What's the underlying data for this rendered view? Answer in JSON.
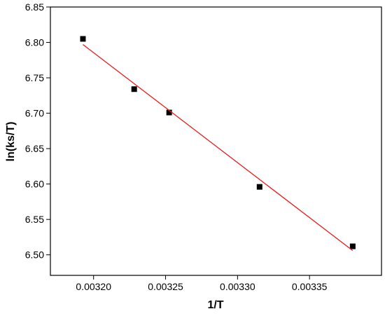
{
  "chart_data": {
    "type": "scatter",
    "x_label": "1/T",
    "y_label": "ln(ks/T)",
    "xlim": [
      0.00317,
      0.0034
    ],
    "ylim": [
      6.471,
      6.85
    ],
    "xticks": [
      {
        "value": 0.0032,
        "label": "0.00320"
      },
      {
        "value": 0.00325,
        "label": "0.00325"
      },
      {
        "value": 0.0033,
        "label": "0.00330"
      },
      {
        "value": 0.00335,
        "label": "0.00335"
      }
    ],
    "yticks": [
      {
        "value": 6.5,
        "label": "6.50"
      },
      {
        "value": 6.55,
        "label": "6.55"
      },
      {
        "value": 6.6,
        "label": "6.60"
      },
      {
        "value": 6.65,
        "label": "6.65"
      },
      {
        "value": 6.7,
        "label": "6.70"
      },
      {
        "value": 6.75,
        "label": "6.75"
      },
      {
        "value": 6.8,
        "label": "6.80"
      },
      {
        "value": 6.85,
        "label": "6.85"
      }
    ],
    "series": [
      {
        "style": "marker",
        "color": "#000000",
        "x": [
          0.0031926,
          0.0032282,
          0.0032525,
          0.0033153,
          0.00338
        ],
        "values": [
          6.805,
          6.734,
          6.701,
          6.596,
          6.512
        ]
      },
      {
        "style": "line",
        "color": "#e02020",
        "x": [
          0.0031926,
          0.00338
        ],
        "values": [
          6.797,
          6.506
        ]
      }
    ]
  }
}
